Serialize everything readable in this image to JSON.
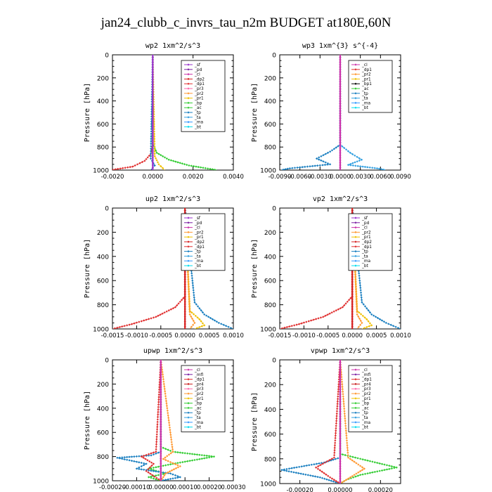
{
  "title": "jan24_clubb_c_invrs_tau_n2m  BUDGET at180E,60N",
  "ylabel": "Pressure [hPa]",
  "series_colors": {
    "_sf": "#9933cc",
    "_pd": "#7a1fa2",
    "_cl": "#cc33aa",
    "_dp2": "#d62020",
    "_dp1": "#e03030",
    "_dp4": "#b01010",
    "_pr4": "#c81e1e",
    "_pr3": "#ff66aa",
    "_pr2": "#ff9933",
    "_pr1": "#f0c000",
    "_mfl": "#7a1fa2",
    "_bp": "#33cc33",
    "_ac": "#33cc33",
    "_tp": "#1a7fc0",
    "_ta": "#33a0e0",
    "_ma": "#3399ff",
    "_bt": "#00ddee"
  },
  "chart_data": [
    {
      "type": "line",
      "subtitle": "wp2   1xm^2/s^3",
      "xlim": [
        -0.002,
        0.004
      ],
      "ylim": [
        1000,
        0
      ],
      "xticks": [
        -0.002,
        0,
        0.002,
        0.004
      ],
      "xtick_labels": [
        "-0.0020",
        "0.0000",
        "0.0020",
        "0.0040"
      ],
      "yticks": [
        0,
        200,
        400,
        600,
        800,
        1000
      ],
      "legend": [
        "_sf",
        "_pd",
        "_cl",
        "_dp2",
        "_dp1",
        "_pr3",
        "_pr2",
        "_pr1",
        "_bp",
        "_ac",
        "_tp",
        "_ta",
        "_ma",
        "_bt"
      ],
      "series": [
        {
          "name": "_dp1",
          "x": [
            0,
            0,
            -0.0001,
            -0.0004,
            -0.001,
            -0.0021
          ],
          "y": [
            0,
            780,
            860,
            920,
            970,
            1000
          ]
        },
        {
          "name": "_bp",
          "x": [
            0,
            0,
            0.0002,
            0.0008,
            0.0018,
            0.0032
          ],
          "y": [
            0,
            770,
            850,
            910,
            960,
            1000
          ]
        },
        {
          "name": "_pr1",
          "x": [
            0,
            0.0001,
            0.0003,
            0.0006
          ],
          "y": [
            0,
            880,
            950,
            1000
          ]
        },
        {
          "name": "_tp",
          "x": [
            0,
            -0.0001,
            0.0001,
            -0.0001
          ],
          "y": [
            0,
            900,
            960,
            1000
          ]
        },
        {
          "name": "_sf",
          "x": [
            0,
            0
          ],
          "y": [
            0,
            1000
          ]
        }
      ]
    },
    {
      "type": "line",
      "subtitle": "wp3   1xm^{3} s^{-4}",
      "xlim": [
        -0.009,
        0.009
      ],
      "ylim": [
        1000,
        0
      ],
      "xticks": [
        -0.009,
        -0.006,
        -0.003,
        0,
        0.003,
        0.006,
        0.009
      ],
      "xtick_labels": [
        "-0.0090",
        "-0.0060",
        "-0.0030",
        "0.0000",
        "0.0030",
        "0.0060",
        "0.0090"
      ],
      "yticks": [
        0,
        200,
        400,
        600,
        800,
        1000
      ],
      "legend": [
        "_cl",
        "_dp1",
        "_pr2",
        "_pr1",
        "_bp1",
        "_ac",
        "_tp",
        "_ta",
        "_ma",
        "_bt"
      ],
      "series": [
        {
          "name": "_tp",
          "x": [
            0,
            0,
            -0.0015,
            -0.0035,
            -0.0015,
            -0.0075,
            -0.0088
          ],
          "y": [
            0,
            780,
            840,
            900,
            950,
            985,
            1000
          ]
        },
        {
          "name": "_ta",
          "x": [
            0,
            0,
            0.0015,
            0.0032,
            0.0012,
            0.0055,
            0.0068
          ],
          "y": [
            0,
            780,
            850,
            910,
            955,
            985,
            1000
          ]
        },
        {
          "name": "_cl",
          "x": [
            0,
            0
          ],
          "y": [
            0,
            1000
          ]
        }
      ]
    },
    {
      "type": "line",
      "subtitle": "up2   1xm^2/s^3",
      "xlim": [
        -0.0015,
        0.001
      ],
      "ylim": [
        1000,
        0
      ],
      "xticks": [
        -0.0015,
        -0.001,
        -0.0005,
        0,
        0.0005,
        0.001
      ],
      "xtick_labels": [
        "-0.0015",
        "-0.0010",
        "-0.0005",
        "0.0000",
        "0.0005",
        "0.0010"
      ],
      "yticks": [
        0,
        200,
        400,
        600,
        800,
        1000
      ],
      "legend": [
        "_sf",
        "_pd",
        "_cl",
        "_pr2",
        "_pr1",
        "_dp2",
        "_dp1",
        "_tp",
        "_ta",
        "_ma",
        "_bt"
      ],
      "series": [
        {
          "name": "_dp1",
          "x": [
            0,
            0,
            -0.0002,
            -0.0006,
            -0.0011,
            -0.0015
          ],
          "y": [
            0,
            730,
            820,
            900,
            960,
            1000
          ]
        },
        {
          "name": "_pr1",
          "x": [
            0,
            0.0001,
            0.0003,
            0.0004,
            0.0002
          ],
          "y": [
            0,
            850,
            920,
            970,
            1000
          ]
        },
        {
          "name": "_pr2",
          "x": [
            0,
            0.0001,
            0.0002,
            0.0001
          ],
          "y": [
            0,
            880,
            950,
            1000
          ]
        },
        {
          "name": "_tp",
          "x": [
            0,
            0.0002,
            0.0004,
            0.0007,
            0.001
          ],
          "y": [
            0,
            780,
            880,
            950,
            1000
          ]
        },
        {
          "name": "_dp2",
          "x": [
            0,
            0
          ],
          "y": [
            0,
            1000
          ]
        }
      ]
    },
    {
      "type": "line",
      "subtitle": "vp2   1xm^2/s^3",
      "xlim": [
        -0.0015,
        0.001
      ],
      "ylim": [
        1000,
        0
      ],
      "xticks": [
        -0.0015,
        -0.001,
        -0.0005,
        0,
        0.0005,
        0.001
      ],
      "xtick_labels": [
        "-0.0015",
        "-0.0010",
        "-0.0005",
        "0.0000",
        "0.0005",
        "0.0010"
      ],
      "yticks": [
        0,
        200,
        400,
        600,
        800,
        1000
      ],
      "legend": [
        "_sf",
        "_pd",
        "_cl",
        "_pr2",
        "_pr1",
        "_dp2",
        "_dp1",
        "_tp",
        "_ta",
        "_ma",
        "_bt"
      ],
      "series": [
        {
          "name": "_dp1",
          "x": [
            0,
            0,
            -0.0002,
            -0.0006,
            -0.0011,
            -0.0015
          ],
          "y": [
            0,
            730,
            820,
            900,
            960,
            1000
          ]
        },
        {
          "name": "_pr1",
          "x": [
            0,
            0.0001,
            0.0003,
            0.0004,
            0.0002
          ],
          "y": [
            0,
            850,
            920,
            970,
            1000
          ]
        },
        {
          "name": "_pr2",
          "x": [
            0,
            0.0001,
            0.0002,
            0.0001
          ],
          "y": [
            0,
            880,
            950,
            1000
          ]
        },
        {
          "name": "_tp",
          "x": [
            0,
            0.0002,
            0.0004,
            0.0007,
            0.001
          ],
          "y": [
            0,
            780,
            880,
            950,
            1000
          ]
        },
        {
          "name": "_dp2",
          "x": [
            0,
            0
          ],
          "y": [
            0,
            1000
          ]
        }
      ]
    },
    {
      "type": "line",
      "subtitle": "upwp   1xm^2/s^3",
      "xlim": [
        -0.0002,
        0.0003
      ],
      "ylim": [
        1000,
        0
      ],
      "xticks": [
        -0.0002,
        -0.0001,
        0,
        0.0001,
        0.0002,
        0.0003
      ],
      "xtick_labels": [
        "-0.00020",
        "-0.00010",
        "0.00000",
        "0.00010",
        "0.00020",
        "0.00030"
      ],
      "yticks": [
        0,
        200,
        400,
        600,
        800,
        1000
      ],
      "legend": [
        "_cl",
        "_mfl",
        "_dp1",
        "_pr4",
        "_pr3",
        "_pr2",
        "_pr1",
        "_bp",
        "_ac",
        "_tp",
        "_ta",
        "_ma",
        "_bt"
      ],
      "series": [
        {
          "name": "_ac",
          "x": [
            0,
            0,
            5e-05,
            0.00022,
            5e-05,
            -5e-05,
            2e-05,
            -5e-05,
            0
          ],
          "y": [
            0,
            720,
            760,
            800,
            860,
            900,
            940,
            970,
            1000
          ]
        },
        {
          "name": "_tp",
          "x": [
            0,
            0,
            -4e-05,
            -0.00018,
            -6e-05,
            -0.0001,
            4e-05,
            8e-05,
            0
          ],
          "y": [
            0,
            760,
            790,
            810,
            860,
            900,
            940,
            970,
            1000
          ]
        },
        {
          "name": "_pr2",
          "x": [
            0,
            5e-05,
            1e-05,
            8e-05,
            2e-05,
            0
          ],
          "y": [
            0,
            760,
            820,
            880,
            940,
            1000
          ]
        },
        {
          "name": "_dp1",
          "x": [
            0,
            -2e-05,
            -8e-05,
            -3e-05,
            -6e-05,
            0
          ],
          "y": [
            0,
            760,
            800,
            860,
            920,
            1000
          ]
        },
        {
          "name": "_cl",
          "x": [
            0,
            0
          ],
          "y": [
            0,
            1000
          ]
        }
      ]
    },
    {
      "type": "line",
      "subtitle": "vpwp   1xm^2/s^3",
      "xlim": [
        -0.0003,
        0.0003
      ],
      "ylim": [
        1000,
        0
      ],
      "xticks": [
        -0.0002,
        0,
        0.0002
      ],
      "xtick_labels": [
        "-0.00020",
        "0.00000",
        "0.00020"
      ],
      "yticks": [
        0,
        200,
        400,
        600,
        800,
        1000
      ],
      "legend": [
        "_cl",
        "_mfl",
        "_dp1",
        "_pr4",
        "_pr3",
        "_pr2",
        "_pr1",
        "_bp",
        "_ac",
        "_tp",
        "_ta",
        "_ma",
        "_bt"
      ],
      "series": [
        {
          "name": "_ac",
          "x": [
            0,
            0,
            0.0001,
            0.00028,
            0.0001,
            3e-05,
            0
          ],
          "y": [
            0,
            760,
            800,
            870,
            930,
            970,
            1000
          ]
        },
        {
          "name": "_tp",
          "x": [
            0,
            0,
            -8e-05,
            -0.00029,
            -0.0001,
            0
          ],
          "y": [
            0,
            790,
            830,
            890,
            950,
            1000
          ]
        },
        {
          "name": "_pr2",
          "x": [
            0,
            4e-05,
            0.00012,
            5e-05,
            0
          ],
          "y": [
            0,
            790,
            880,
            950,
            1000
          ]
        },
        {
          "name": "_dp1",
          "x": [
            0,
            -3e-05,
            -0.00012,
            -5e-05,
            0
          ],
          "y": [
            0,
            790,
            870,
            950,
            1000
          ]
        },
        {
          "name": "_cl",
          "x": [
            0,
            0
          ],
          "y": [
            0,
            1000
          ]
        }
      ]
    }
  ]
}
